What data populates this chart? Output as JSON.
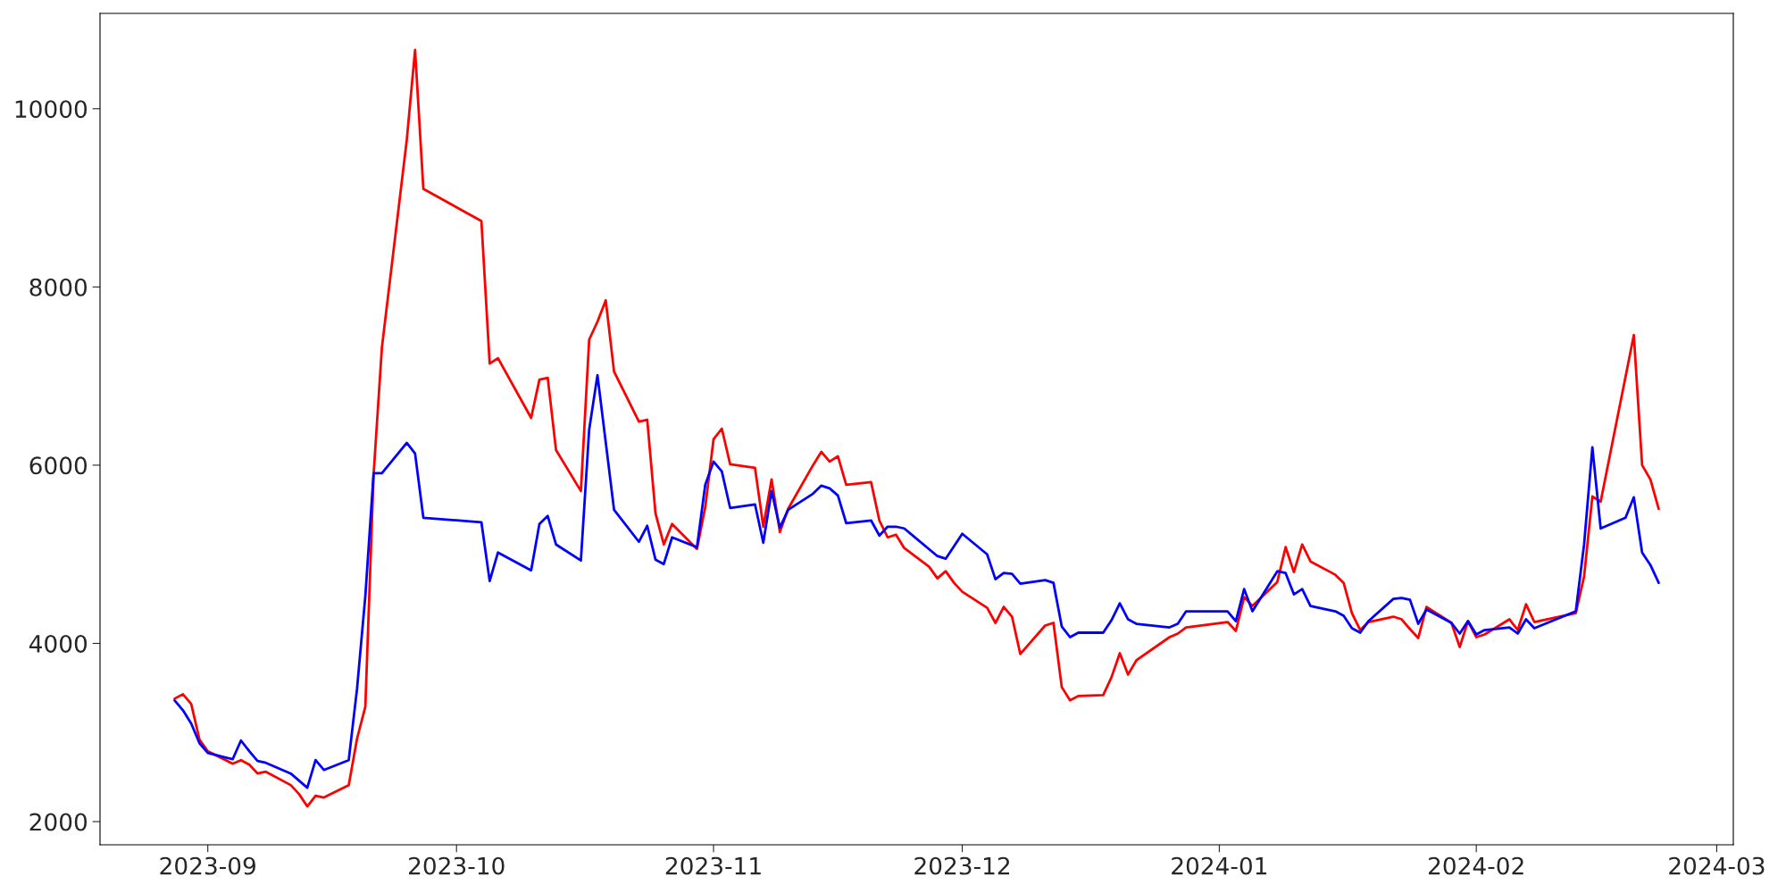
{
  "chart_data": {
    "type": "line",
    "xlim": [
      "2023-08-19",
      "2024-03-03"
    ],
    "ylim": [
      1740,
      11070
    ],
    "xticks": [
      {
        "value": "2023-09-01",
        "label": "2023-09"
      },
      {
        "value": "2023-10-01",
        "label": "2023-10"
      },
      {
        "value": "2023-11-01",
        "label": "2023-11"
      },
      {
        "value": "2023-12-01",
        "label": "2023-12"
      },
      {
        "value": "2024-01-01",
        "label": "2024-01"
      },
      {
        "value": "2024-02-01",
        "label": "2024-02"
      },
      {
        "value": "2024-03-01",
        "label": "2024-03"
      }
    ],
    "yticks": [
      2000,
      4000,
      6000,
      8000,
      10000
    ],
    "grid": false,
    "line_style": "solid",
    "marker": "none",
    "series": [
      {
        "color": "#ff0000",
        "x": [
          "2023-08-28",
          "2023-08-29",
          "2023-08-30",
          "2023-08-31",
          "2023-09-01",
          "2023-09-04",
          "2023-09-05",
          "2023-09-06",
          "2023-09-07",
          "2023-09-08",
          "2023-09-11",
          "2023-09-12",
          "2023-09-13",
          "2023-09-14",
          "2023-09-15",
          "2023-09-18",
          "2023-09-19",
          "2023-09-20",
          "2023-09-21",
          "2023-09-22",
          "2023-09-25",
          "2023-09-26",
          "2023-09-27",
          "2023-10-04",
          "2023-10-05",
          "2023-10-06",
          "2023-10-10",
          "2023-10-11",
          "2023-10-12",
          "2023-10-13",
          "2023-10-16",
          "2023-10-17",
          "2023-10-18",
          "2023-10-19",
          "2023-10-20",
          "2023-10-23",
          "2023-10-24",
          "2023-10-25",
          "2023-10-26",
          "2023-10-27",
          "2023-10-30",
          "2023-10-31",
          "2023-11-01",
          "2023-11-02",
          "2023-11-03",
          "2023-11-06",
          "2023-11-07",
          "2023-11-08",
          "2023-11-09",
          "2023-11-10",
          "2023-11-13",
          "2023-11-14",
          "2023-11-15",
          "2023-11-16",
          "2023-11-17",
          "2023-11-20",
          "2023-11-21",
          "2023-11-22",
          "2023-11-23",
          "2023-11-24",
          "2023-11-27",
          "2023-11-28",
          "2023-11-29",
          "2023-11-30",
          "2023-12-01",
          "2023-12-04",
          "2023-12-05",
          "2023-12-06",
          "2023-12-07",
          "2023-12-08",
          "2023-12-11",
          "2023-12-12",
          "2023-12-13",
          "2023-12-14",
          "2023-12-15",
          "2023-12-18",
          "2023-12-19",
          "2023-12-20",
          "2023-12-21",
          "2023-12-22",
          "2023-12-26",
          "2023-12-27",
          "2023-12-28",
          "2024-01-02",
          "2024-01-03",
          "2024-01-04",
          "2024-01-05",
          "2024-01-08",
          "2024-01-09",
          "2024-01-10",
          "2024-01-11",
          "2024-01-12",
          "2024-01-15",
          "2024-01-16",
          "2024-01-17",
          "2024-01-18",
          "2024-01-19",
          "2024-01-22",
          "2024-01-23",
          "2024-01-24",
          "2024-01-25",
          "2024-01-26",
          "2024-01-29",
          "2024-01-30",
          "2024-01-31",
          "2024-02-01",
          "2024-02-02",
          "2024-02-05",
          "2024-02-06",
          "2024-02-07",
          "2024-02-08",
          "2024-02-13",
          "2024-02-14",
          "2024-02-15",
          "2024-02-16",
          "2024-02-20",
          "2024-02-21",
          "2024-02-22",
          "2024-02-23"
        ],
        "values": [
          3380,
          3430,
          3320,
          2920,
          2790,
          2650,
          2690,
          2640,
          2540,
          2560,
          2410,
          2310,
          2170,
          2290,
          2270,
          2410,
          2930,
          3290,
          5900,
          7320,
          9650,
          10660,
          9100,
          8740,
          7140,
          7200,
          6530,
          6960,
          6980,
          6170,
          5710,
          7410,
          7610,
          7850,
          7050,
          6490,
          6510,
          5460,
          5110,
          5340,
          5060,
          5530,
          6290,
          6410,
          6010,
          5970,
          5310,
          5840,
          5250,
          5510,
          6000,
          6150,
          6040,
          6100,
          5780,
          5810,
          5380,
          5190,
          5220,
          5070,
          4860,
          4730,
          4810,
          4680,
          4580,
          4400,
          4230,
          4410,
          4300,
          3880,
          4200,
          4230,
          3510,
          3360,
          3410,
          3420,
          3620,
          3890,
          3650,
          3810,
          4070,
          4110,
          4180,
          4240,
          4140,
          4520,
          4420,
          4690,
          5080,
          4800,
          5110,
          4920,
          4770,
          4680,
          4340,
          4150,
          4240,
          4300,
          4270,
          4160,
          4060,
          4410,
          4230,
          3960,
          4250,
          4070,
          4100,
          4270,
          4150,
          4440,
          4240,
          4340,
          4750,
          5650,
          5590,
          7460,
          6000,
          5840,
          5510
        ]
      },
      {
        "color": "#0000ff",
        "x": [
          "2023-08-28",
          "2023-08-29",
          "2023-08-30",
          "2023-08-31",
          "2023-09-01",
          "2023-09-04",
          "2023-09-05",
          "2023-09-06",
          "2023-09-07",
          "2023-09-08",
          "2023-09-11",
          "2023-09-12",
          "2023-09-13",
          "2023-09-14",
          "2023-09-15",
          "2023-09-18",
          "2023-09-19",
          "2023-09-20",
          "2023-09-21",
          "2023-09-22",
          "2023-09-25",
          "2023-09-26",
          "2023-09-27",
          "2023-10-04",
          "2023-10-05",
          "2023-10-06",
          "2023-10-10",
          "2023-10-11",
          "2023-10-12",
          "2023-10-13",
          "2023-10-16",
          "2023-10-17",
          "2023-10-18",
          "2023-10-20",
          "2023-10-23",
          "2023-10-24",
          "2023-10-25",
          "2023-10-26",
          "2023-10-27",
          "2023-10-30",
          "2023-10-31",
          "2023-11-01",
          "2023-11-02",
          "2023-11-03",
          "2023-11-06",
          "2023-11-07",
          "2023-11-08",
          "2023-11-09",
          "2023-11-10",
          "2023-11-13",
          "2023-11-14",
          "2023-11-15",
          "2023-11-16",
          "2023-11-17",
          "2023-11-20",
          "2023-11-21",
          "2023-11-22",
          "2023-11-23",
          "2023-11-24",
          "2023-11-28",
          "2023-11-29",
          "2023-12-01",
          "2023-12-04",
          "2023-12-05",
          "2023-12-06",
          "2023-12-07",
          "2023-12-08",
          "2023-12-11",
          "2023-12-12",
          "2023-12-13",
          "2023-12-14",
          "2023-12-15",
          "2023-12-18",
          "2023-12-19",
          "2023-12-20",
          "2023-12-21",
          "2023-12-22",
          "2023-12-26",
          "2023-12-27",
          "2023-12-28",
          "2024-01-02",
          "2024-01-03",
          "2024-01-04",
          "2024-01-05",
          "2024-01-08",
          "2024-01-09",
          "2024-01-10",
          "2024-01-11",
          "2024-01-12",
          "2024-01-15",
          "2024-01-16",
          "2024-01-17",
          "2024-01-18",
          "2024-01-19",
          "2024-01-22",
          "2024-01-23",
          "2024-01-24",
          "2024-01-25",
          "2024-01-26",
          "2024-01-29",
          "2024-01-30",
          "2024-01-31",
          "2024-02-01",
          "2024-02-02",
          "2024-02-05",
          "2024-02-06",
          "2024-02-07",
          "2024-02-08",
          "2024-02-13",
          "2024-02-14",
          "2024-02-15",
          "2024-02-16",
          "2024-02-19",
          "2024-02-20",
          "2024-02-21",
          "2024-02-22",
          "2024-02-23"
        ],
        "values": [
          3360,
          3250,
          3100,
          2880,
          2770,
          2700,
          2910,
          2790,
          2680,
          2660,
          2540,
          2460,
          2380,
          2690,
          2580,
          2690,
          3490,
          4530,
          5910,
          5910,
          6250,
          6130,
          5410,
          5360,
          4700,
          5020,
          4820,
          5340,
          5430,
          5110,
          4930,
          6400,
          7010,
          5500,
          5140,
          5320,
          4940,
          4890,
          5190,
          5080,
          5780,
          6040,
          5930,
          5520,
          5560,
          5130,
          5710,
          5300,
          5500,
          5680,
          5770,
          5740,
          5660,
          5350,
          5380,
          5210,
          5310,
          5310,
          5290,
          4980,
          4950,
          5230,
          5000,
          4720,
          4790,
          4780,
          4670,
          4710,
          4680,
          4190,
          4070,
          4120,
          4120,
          4260,
          4450,
          4270,
          4220,
          4180,
          4220,
          4360,
          4360,
          4250,
          4610,
          4360,
          4810,
          4790,
          4550,
          4610,
          4420,
          4360,
          4310,
          4170,
          4120,
          4250,
          4500,
          4510,
          4490,
          4220,
          4380,
          4230,
          4110,
          4250,
          4100,
          4150,
          4180,
          4110,
          4270,
          4170,
          4360,
          5110,
          6200,
          5290,
          5410,
          5640,
          5020,
          4880,
          4680
        ]
      }
    ]
  }
}
